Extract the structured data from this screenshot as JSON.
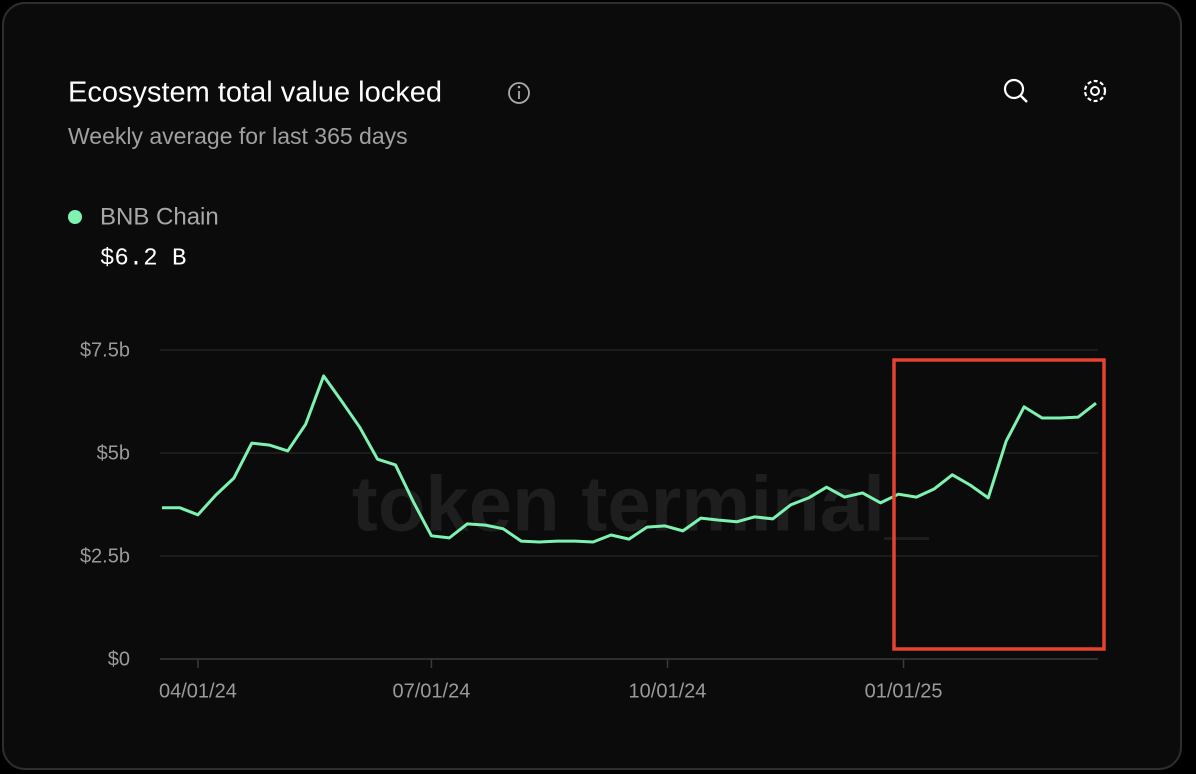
{
  "chart_data": {
    "type": "line",
    "title": "Ecosystem total value locked",
    "subtitle": "Weekly average for last 365 days",
    "watermark": "token terminal_",
    "legend_value": "$6.2 B",
    "x": [
      "2024-03-18",
      "2024-03-25",
      "2024-04-01",
      "2024-04-08",
      "2024-04-15",
      "2024-04-22",
      "2024-04-29",
      "2024-05-06",
      "2024-05-13",
      "2024-05-20",
      "2024-05-27",
      "2024-06-03",
      "2024-06-10",
      "2024-06-17",
      "2024-06-24",
      "2024-07-01",
      "2024-07-08",
      "2024-07-15",
      "2024-07-22",
      "2024-07-29",
      "2024-08-05",
      "2024-08-12",
      "2024-08-19",
      "2024-08-26",
      "2024-09-02",
      "2024-09-09",
      "2024-09-16",
      "2024-09-23",
      "2024-09-30",
      "2024-10-07",
      "2024-10-14",
      "2024-10-21",
      "2024-10-28",
      "2024-11-04",
      "2024-11-11",
      "2024-11-18",
      "2024-11-25",
      "2024-12-02",
      "2024-12-09",
      "2024-12-16",
      "2024-12-23",
      "2024-12-30",
      "2025-01-06",
      "2025-01-13",
      "2025-01-20",
      "2025-01-27",
      "2025-02-03",
      "2025-02-10",
      "2025-02-17",
      "2025-02-24",
      "2025-03-03",
      "2025-03-10",
      "2025-03-17"
    ],
    "series": [
      {
        "name": "BNB Chain",
        "color": "#7ef2b0",
        "values": [
          3.67,
          3.67,
          3.5,
          3.98,
          4.39,
          5.24,
          5.19,
          5.05,
          5.7,
          6.87,
          6.26,
          5.63,
          4.85,
          4.71,
          3.81,
          2.99,
          2.94,
          3.28,
          3.25,
          3.16,
          2.86,
          2.84,
          2.86,
          2.86,
          2.84,
          3.01,
          2.91,
          3.2,
          3.23,
          3.11,
          3.42,
          3.37,
          3.33,
          3.45,
          3.4,
          3.74,
          3.91,
          4.17,
          3.93,
          4.03,
          3.79,
          4.0,
          3.93,
          4.13,
          4.47,
          4.22,
          3.91,
          5.29,
          6.12,
          5.85,
          5.85,
          5.87,
          6.21
        ]
      }
    ],
    "xlim": [
      "2024-03-18",
      "2025-03-17"
    ],
    "xticks": [
      {
        "value": "2024-04-01",
        "label": "04/01/24"
      },
      {
        "value": "2024-07-01",
        "label": "07/01/24"
      },
      {
        "value": "2024-10-01",
        "label": "10/01/24"
      },
      {
        "value": "2025-01-01",
        "label": "01/01/25"
      }
    ],
    "ylim": [
      0,
      7.5
    ],
    "yticks": [
      {
        "value": 0,
        "label": "$0"
      },
      {
        "value": 2.5,
        "label": "$2.5b"
      },
      {
        "value": 5,
        "label": "$5b"
      },
      {
        "value": 7.5,
        "label": "$7.5b"
      }
    ],
    "grid": true
  }
}
